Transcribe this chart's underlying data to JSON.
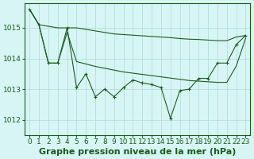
{
  "background_color": "#d8f5f5",
  "grid_color": "#b0d8d8",
  "line_color": "#1a5c1a",
  "xlabel": "Graphe pression niveau de la mer (hPa)",
  "xlabel_fontsize": 8,
  "tick_fontsize": 6.5,
  "ylim": [
    1011.5,
    1015.8
  ],
  "yticks": [
    1012,
    1013,
    1014,
    1015
  ],
  "xlim": [
    -0.5,
    23.5
  ],
  "xticks": [
    0,
    1,
    2,
    3,
    4,
    5,
    6,
    7,
    8,
    9,
    10,
    11,
    12,
    13,
    14,
    15,
    16,
    17,
    18,
    19,
    20,
    21,
    22,
    23
  ],
  "upper_x": [
    0,
    1,
    2,
    3,
    4,
    5,
    6,
    7,
    8,
    9,
    10,
    11,
    12,
    13,
    14,
    15,
    16,
    17,
    18,
    19,
    20,
    21,
    22,
    23
  ],
  "upper_y": [
    1015.6,
    1015.1,
    1015.05,
    1015.0,
    1015.0,
    1015.0,
    1014.95,
    1014.9,
    1014.85,
    1014.8,
    1014.78,
    1014.76,
    1014.74,
    1014.72,
    1014.7,
    1014.68,
    1014.65,
    1014.63,
    1014.62,
    1014.6,
    1014.58,
    1014.58,
    1014.7,
    1014.75
  ],
  "lower_x": [
    0,
    1,
    2,
    3,
    4,
    5,
    6,
    7,
    8,
    9,
    10,
    11,
    12,
    13,
    14,
    15,
    16,
    17,
    18,
    19,
    20,
    21,
    22,
    23
  ],
  "lower_y": [
    1015.6,
    1015.1,
    1013.85,
    1013.85,
    1014.85,
    1013.9,
    1013.82,
    1013.74,
    1013.68,
    1013.62,
    1013.56,
    1013.52,
    1013.48,
    1013.44,
    1013.4,
    1013.36,
    1013.32,
    1013.28,
    1013.26,
    1013.24,
    1013.22,
    1013.22,
    1013.75,
    1014.65
  ],
  "meas_x": [
    0,
    1,
    2,
    3,
    4,
    5,
    6,
    7,
    8,
    9,
    10,
    11,
    12,
    13,
    14,
    15,
    16,
    17,
    18,
    19,
    20,
    21,
    22,
    23
  ],
  "meas_y": [
    1015.6,
    1015.1,
    1013.85,
    1013.85,
    1015.0,
    1013.05,
    1013.5,
    1012.75,
    1013.0,
    1012.75,
    1013.05,
    1013.3,
    1013.2,
    1013.15,
    1013.05,
    1012.05,
    1012.95,
    1013.0,
    1013.35,
    1013.35,
    1013.85,
    1013.85,
    1014.45,
    1014.75
  ]
}
